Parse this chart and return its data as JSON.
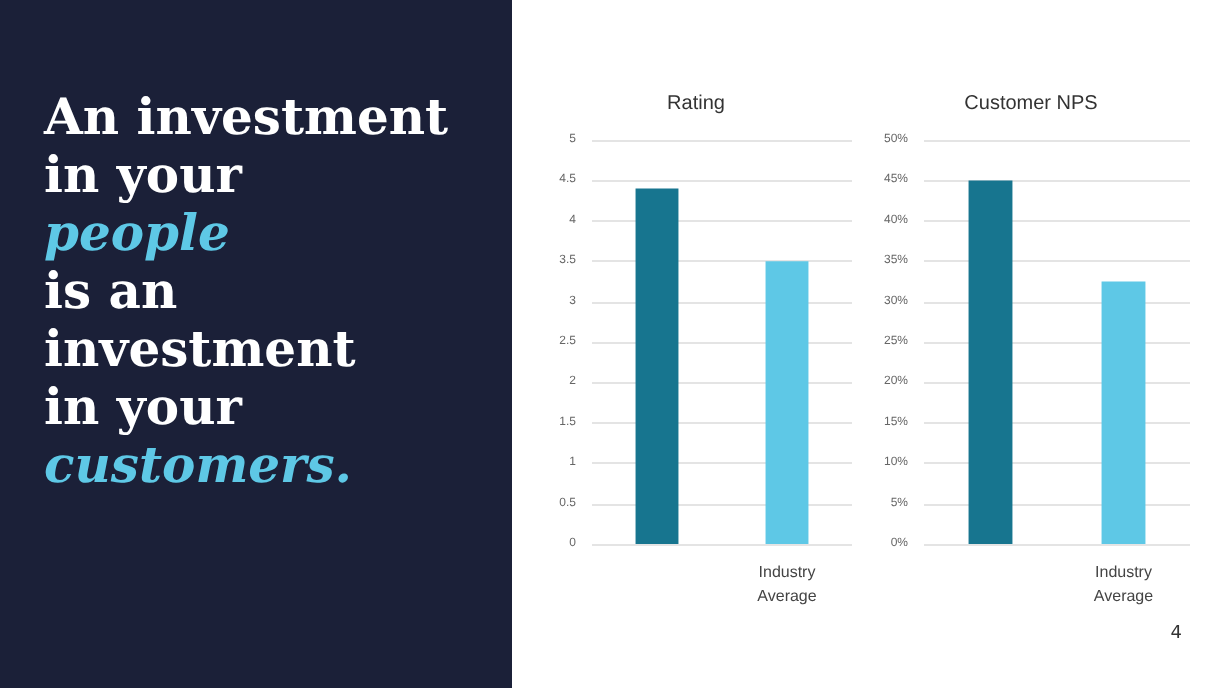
{
  "chart_data": [
    {
      "type": "bar",
      "title": "Rating",
      "categories": [
        null,
        "Industry Average"
      ],
      "values": [
        4.4,
        3.5
      ],
      "colors": [
        "#17758f",
        "#5ec8e6"
      ],
      "ylim": [
        0,
        5
      ],
      "yticks": [
        0,
        0.5,
        1,
        1.5,
        2,
        2.5,
        3,
        3.5,
        4,
        4.5,
        5
      ],
      "grid": "y",
      "annotations": [
        "An investment",
        "in your",
        "people",
        "is an",
        "investment",
        "in your",
        "customers."
      ]
    },
    {
      "type": "bar",
      "title": "Customer NPS",
      "categories": [
        null,
        "Industry Average"
      ],
      "values": [
        45,
        32.5
      ],
      "colors": [
        "#17758f",
        "#5ec8e6"
      ],
      "ylim": [
        0,
        50
      ],
      "yticks": [
        {
          "value": 0,
          "label": "0%"
        },
        {
          "value": 5,
          "label": "5%"
        },
        {
          "value": 10,
          "label": "10%"
        },
        {
          "value": 15,
          "label": "15%"
        },
        {
          "value": 20,
          "label": "20%"
        },
        {
          "value": 25,
          "label": "25%"
        },
        {
          "value": 30,
          "label": "30%"
        },
        {
          "value": 35,
          "label": "35%"
        },
        {
          "value": 40,
          "label": "40%"
        },
        {
          "value": 45,
          "label": "45%"
        },
        {
          "value": 50,
          "label": "50%"
        }
      ],
      "grid": "y",
      "annotations": [
        "4"
      ]
    }
  ]
}
